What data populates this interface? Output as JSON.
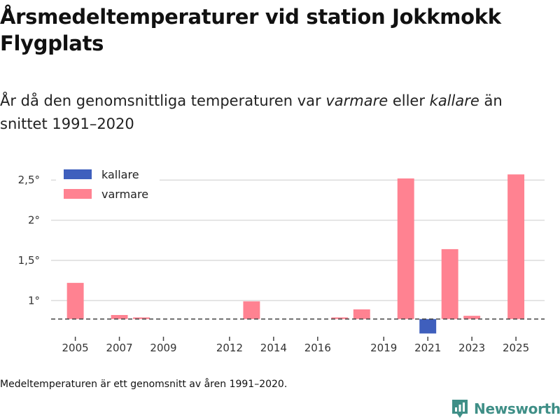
{
  "title": "Årsmedeltemperaturer vid station Jokkmokk Flygplats",
  "subtitle": {
    "prefix": "År då den genomsnittliga temperaturen var ",
    "warmer": "varmare",
    "middle": " eller ",
    "colder": "kallare",
    "suffix": " än snittet 1991–2020"
  },
  "footnote": "Medeltemperaturen är ett genomsnitt av åren 1991–2020.",
  "brand": "Newsworthy",
  "colors": {
    "warmer": "#ff8291",
    "colder": "#3f5fbd",
    "brand": "#3f8f87"
  },
  "chart_data": {
    "type": "bar",
    "title": "Årsmedeltemperaturer vid station Jokkmokk Flygplats",
    "baseline": 0.77,
    "baseline_style": "dashed",
    "ylim": [
      0.55,
      2.65
    ],
    "yticks": [
      1,
      1.5,
      2,
      2.5
    ],
    "ytick_labels": [
      "1°",
      "1,5°",
      "2°",
      "2,5°"
    ],
    "xlim": [
      2003.9,
      2026.3
    ],
    "xticks": [
      2005,
      2007,
      2009,
      2012,
      2014,
      2016,
      2019,
      2021,
      2023,
      2025
    ],
    "xtick_labels": [
      "2005",
      "2007",
      "2009",
      "2012",
      "2014",
      "2016",
      "2019",
      "2021",
      "2023",
      "2025"
    ],
    "legend": [
      {
        "key": "colder",
        "label": "kallare"
      },
      {
        "key": "warmer",
        "label": "varmare"
      }
    ],
    "legend_position": "top-left",
    "points": [
      {
        "year": 2005,
        "value": 1.22
      },
      {
        "year": 2007,
        "value": 0.82
      },
      {
        "year": 2008,
        "value": 0.79
      },
      {
        "year": 2013,
        "value": 0.99
      },
      {
        "year": 2017,
        "value": 0.79
      },
      {
        "year": 2018,
        "value": 0.89
      },
      {
        "year": 2020,
        "value": 2.52
      },
      {
        "year": 2021,
        "value": 0.59
      },
      {
        "year": 2022,
        "value": 1.64
      },
      {
        "year": 2023,
        "value": 0.81
      },
      {
        "year": 2025,
        "value": 2.57
      }
    ]
  }
}
